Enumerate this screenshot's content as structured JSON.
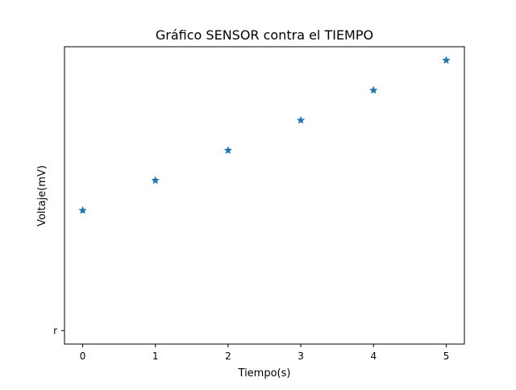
{
  "chart_data": {
    "type": "scatter",
    "title": "Gráfico SENSOR contra el TIEMPO",
    "xlabel": "Tiempo(s)",
    "ylabel": "Voltaje(mV)",
    "marker": "star",
    "color": "#1f77b4",
    "x": [
      0,
      1,
      2,
      3,
      4,
      5
    ],
    "y": [
      4,
      5,
      6,
      7,
      8,
      9
    ],
    "xlim": [
      -0.25,
      5.25
    ],
    "ylim": [
      -0.45,
      9.45
    ],
    "xticks": [
      0,
      1,
      2,
      3,
      4,
      5
    ],
    "yticks": [
      {
        "value": 0,
        "label": "r"
      }
    ],
    "grid": false,
    "legend": false
  }
}
